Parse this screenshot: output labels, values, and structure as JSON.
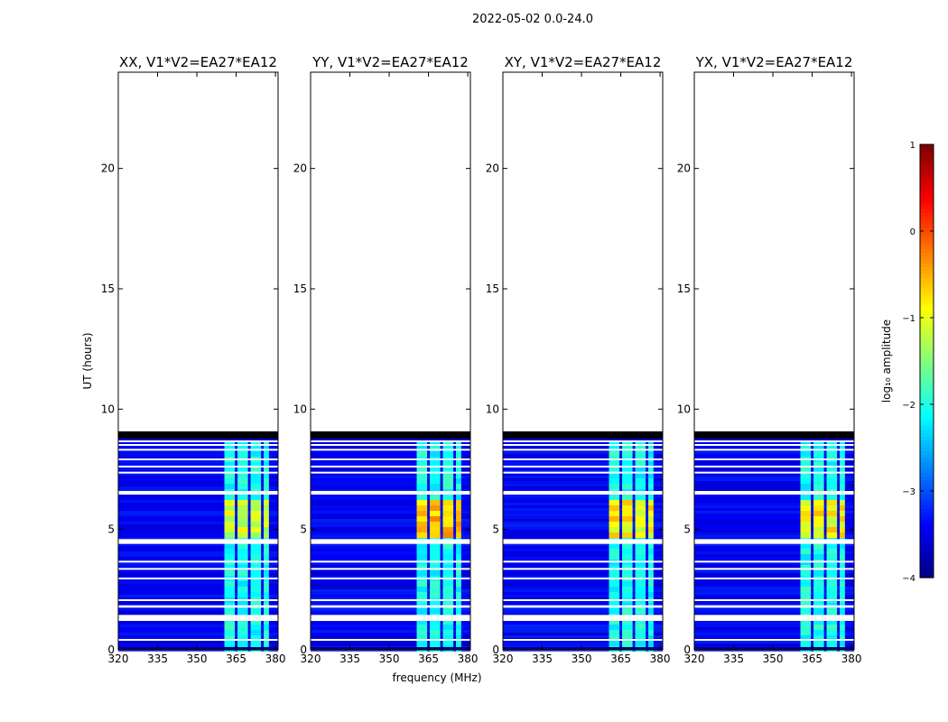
{
  "figure": {
    "suptitle": "2022-05-02 0.0-24.0"
  },
  "chart_data": [
    {
      "type": "heatmap",
      "title": "XX, V1*V2=EA27*EA12",
      "xlabel": "",
      "ylabel": "UT (hours)",
      "xlim": [
        320,
        381
      ],
      "ylim": [
        0,
        24
      ],
      "xticks": [
        320,
        335,
        350,
        365,
        380
      ],
      "yticks": [
        0,
        5,
        10,
        15,
        20
      ],
      "data_extent_hours": [
        0,
        9.0
      ],
      "flagged_rows_hours": [
        [
          0.4,
          0.45
        ],
        [
          1.2,
          1.45
        ],
        [
          1.75,
          1.85
        ],
        [
          2.05,
          2.1
        ],
        [
          2.95,
          3.0
        ],
        [
          3.35,
          3.4
        ],
        [
          3.65,
          3.7
        ],
        [
          4.4,
          4.6
        ],
        [
          6.45,
          6.6
        ],
        [
          7.35,
          7.4
        ],
        [
          7.6,
          7.65
        ],
        [
          7.9,
          7.95
        ],
        [
          8.3,
          8.35
        ],
        [
          8.5,
          8.55
        ],
        [
          8.65,
          8.7
        ]
      ],
      "bright_band_MHz": [
        360.5,
        377
      ],
      "bright_subbands_MHz": [
        [
          360.5,
          364.5
        ],
        [
          365.5,
          369.5
        ],
        [
          370.5,
          374.5
        ],
        [
          375.5,
          377.5
        ]
      ],
      "peak_log10_amplitude": -0.8
    },
    {
      "type": "heatmap",
      "title": "YY, V1*V2=EA27*EA12",
      "xlabel": "frequency (MHz)",
      "ylabel": "",
      "xlim": [
        320,
        381
      ],
      "ylim": [
        0,
        24
      ],
      "xticks": [
        320,
        335,
        350,
        365,
        380
      ],
      "yticks": [
        0,
        5,
        10,
        15,
        20
      ],
      "data_extent_hours": [
        0,
        9.0
      ],
      "flagged_rows_hours": [
        [
          0.4,
          0.45
        ],
        [
          1.2,
          1.45
        ],
        [
          1.75,
          1.85
        ],
        [
          2.05,
          2.1
        ],
        [
          2.95,
          3.0
        ],
        [
          3.35,
          3.4
        ],
        [
          3.65,
          3.7
        ],
        [
          4.4,
          4.6
        ],
        [
          6.45,
          6.6
        ],
        [
          7.35,
          7.4
        ],
        [
          7.6,
          7.65
        ],
        [
          7.9,
          7.95
        ],
        [
          8.3,
          8.35
        ],
        [
          8.5,
          8.55
        ],
        [
          8.65,
          8.7
        ]
      ],
      "bright_band_MHz": [
        360.5,
        377
      ],
      "bright_subbands_MHz": [
        [
          360.5,
          364.5
        ],
        [
          365.5,
          369.5
        ],
        [
          370.5,
          374.5
        ],
        [
          375.5,
          377.5
        ]
      ],
      "peak_log10_amplitude": -0.2
    },
    {
      "type": "heatmap",
      "title": "XY, V1*V2=EA27*EA12",
      "xlabel": "",
      "ylabel": "",
      "xlim": [
        320,
        381
      ],
      "ylim": [
        0,
        24
      ],
      "xticks": [
        320,
        335,
        350,
        365,
        380
      ],
      "yticks": [
        0,
        5,
        10,
        15,
        20
      ],
      "data_extent_hours": [
        0,
        9.0
      ],
      "flagged_rows_hours": [
        [
          0.4,
          0.45
        ],
        [
          1.2,
          1.45
        ],
        [
          1.75,
          1.85
        ],
        [
          2.05,
          2.1
        ],
        [
          2.95,
          3.0
        ],
        [
          3.35,
          3.4
        ],
        [
          3.65,
          3.7
        ],
        [
          4.4,
          4.6
        ],
        [
          6.45,
          6.6
        ],
        [
          7.35,
          7.4
        ],
        [
          7.6,
          7.65
        ],
        [
          7.9,
          7.95
        ],
        [
          8.3,
          8.35
        ],
        [
          8.5,
          8.55
        ],
        [
          8.65,
          8.7
        ]
      ],
      "bright_band_MHz": [
        360.5,
        377
      ],
      "bright_subbands_MHz": [
        [
          360.5,
          364.5
        ],
        [
          365.5,
          369.5
        ],
        [
          370.5,
          374.5
        ],
        [
          375.5,
          377.5
        ]
      ],
      "peak_log10_amplitude": -0.5
    },
    {
      "type": "heatmap",
      "title": "YX, V1*V2=EA27*EA12",
      "xlabel": "",
      "ylabel": "",
      "xlim": [
        320,
        381
      ],
      "ylim": [
        0,
        24
      ],
      "xticks": [
        320,
        335,
        350,
        365,
        380
      ],
      "yticks": [
        0,
        5,
        10,
        15,
        20
      ],
      "data_extent_hours": [
        0,
        9.0
      ],
      "flagged_rows_hours": [
        [
          0.4,
          0.45
        ],
        [
          1.2,
          1.45
        ],
        [
          1.75,
          1.85
        ],
        [
          2.05,
          2.1
        ],
        [
          2.95,
          3.0
        ],
        [
          3.35,
          3.4
        ],
        [
          3.65,
          3.7
        ],
        [
          4.4,
          4.6
        ],
        [
          6.45,
          6.6
        ],
        [
          7.35,
          7.4
        ],
        [
          7.6,
          7.65
        ],
        [
          7.9,
          7.95
        ],
        [
          8.3,
          8.35
        ],
        [
          8.5,
          8.55
        ],
        [
          8.65,
          8.7
        ]
      ],
      "bright_band_MHz": [
        360.5,
        377
      ],
      "bright_subbands_MHz": [
        [
          360.5,
          364.5
        ],
        [
          365.5,
          369.5
        ],
        [
          370.5,
          374.5
        ],
        [
          375.5,
          377.5
        ]
      ],
      "peak_log10_amplitude": -0.5
    }
  ],
  "colorbar": {
    "label": "log₁₀ amplitude",
    "min": -4,
    "max": 1,
    "ticks": [
      1,
      0,
      -1,
      -2,
      -3,
      -4
    ],
    "colormap": "jet"
  }
}
